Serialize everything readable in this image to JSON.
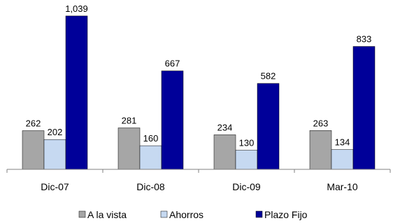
{
  "chart_data": {
    "type": "bar",
    "categories": [
      "Dic-07",
      "Dic-08",
      "Dic-09",
      "Mar-10"
    ],
    "series": [
      {
        "name": "A la vista",
        "values": [
          262,
          281,
          234,
          263
        ],
        "color": "#a6a6a6",
        "labels": [
          "262",
          "281",
          "234",
          "263"
        ]
      },
      {
        "name": "Ahorros",
        "values": [
          202,
          160,
          130,
          134
        ],
        "color": "#c6d9f1",
        "labels": [
          "202",
          "160",
          "130",
          "134"
        ]
      },
      {
        "name": "Plazo Fijo",
        "values": [
          1039,
          667,
          582,
          833
        ],
        "color": "#000099",
        "labels": [
          "1,039",
          "667",
          "582",
          "833"
        ]
      }
    ],
    "ylim": [
      0,
      1100
    ],
    "legend_position": "bottom",
    "grid": false,
    "title": "",
    "xlabel": "",
    "ylabel": ""
  }
}
